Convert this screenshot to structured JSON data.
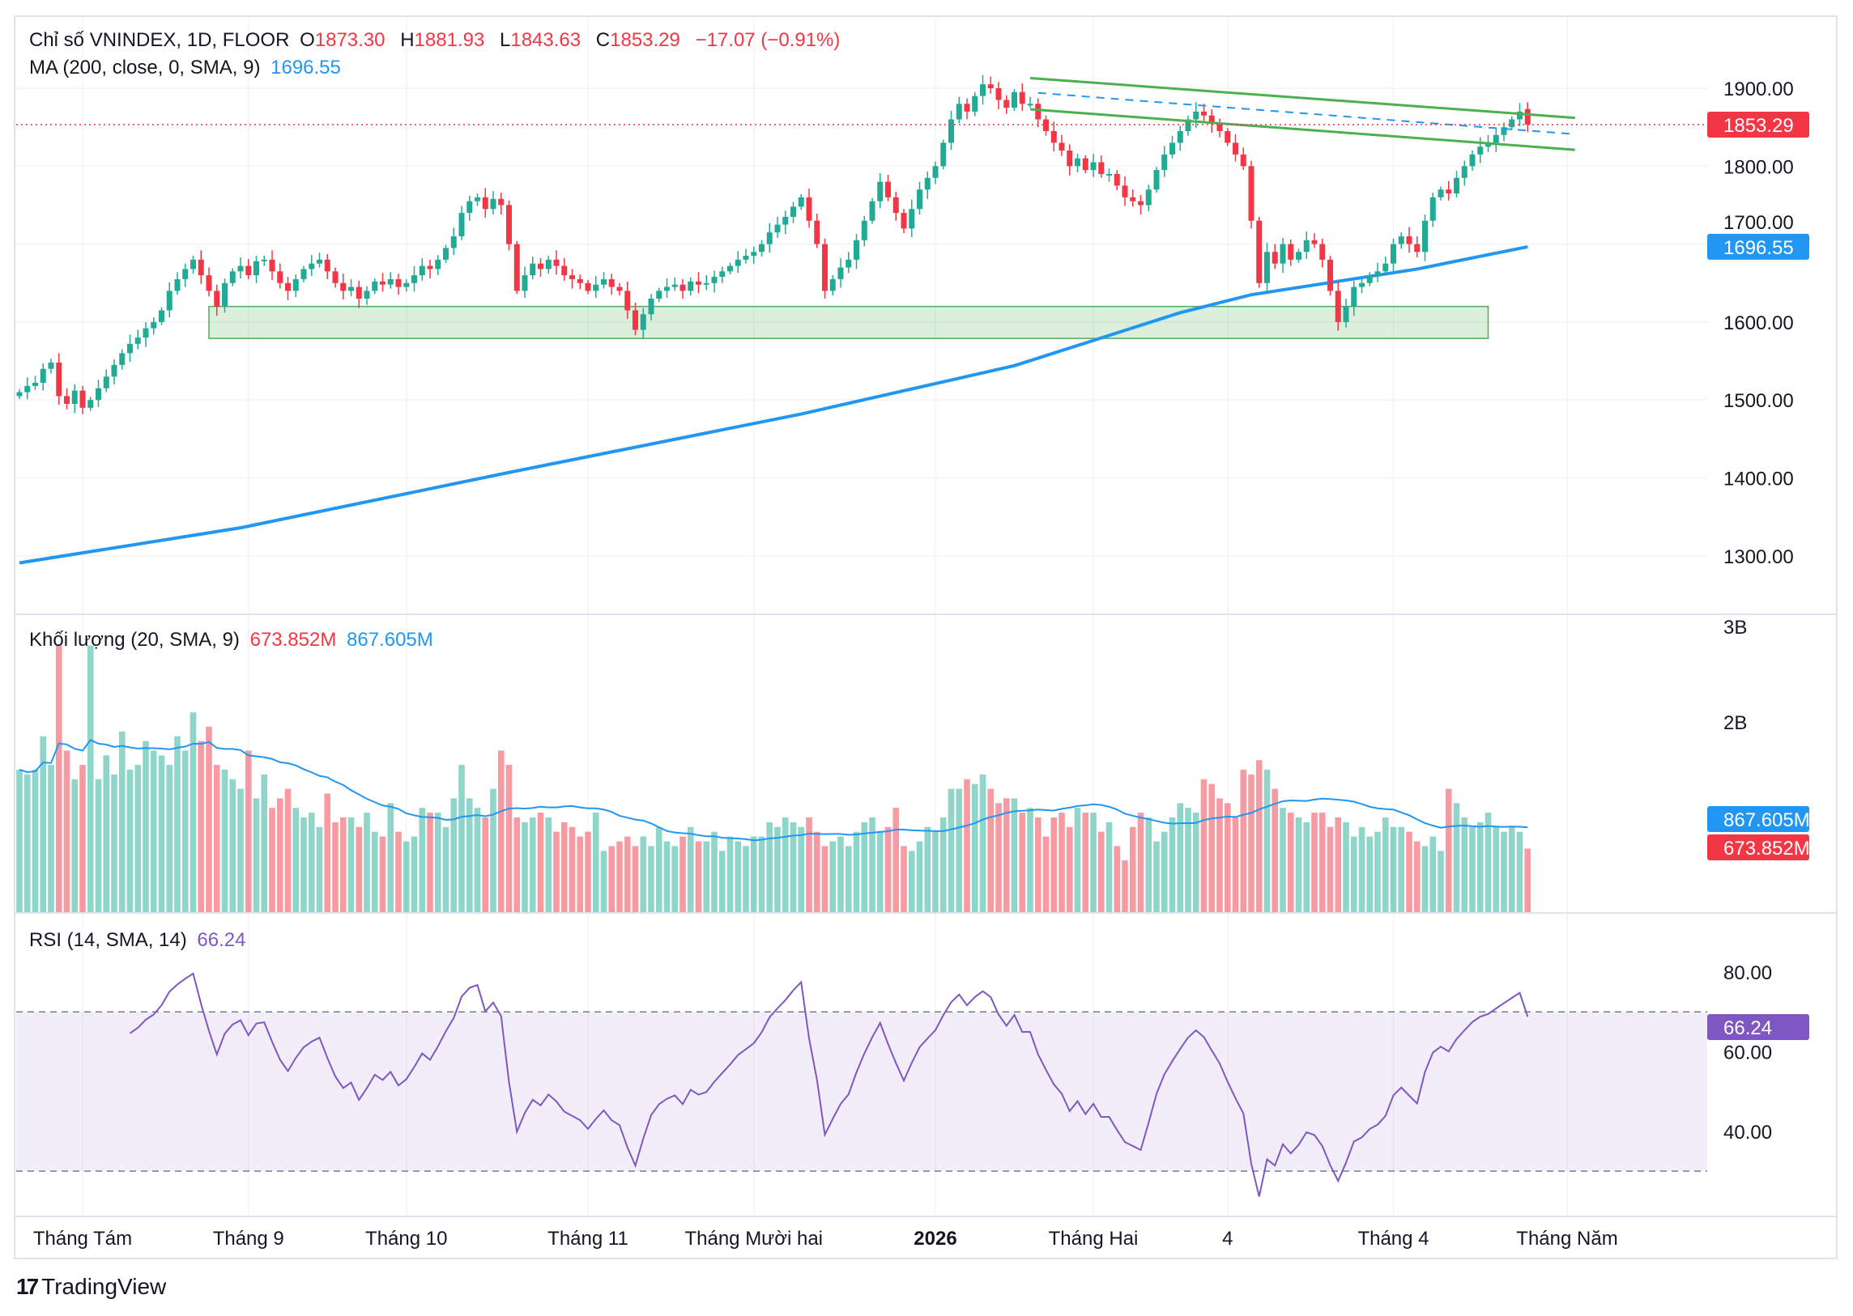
{
  "legend": {
    "title": "Chỉ số VNINDEX, 1D, FLOOR",
    "o_label": "O",
    "o": "1873.30",
    "h_label": "H",
    "h": "1881.93",
    "l_label": "L",
    "l": "1843.63",
    "c_label": "C",
    "c": "1853.29",
    "change": "−17.07 (−0.91%)",
    "ma_label": "MA (200, close, 0, SMA, 9)",
    "ma_value": "1696.55",
    "vol_label": "Khối lượng (20, SMA, 9)",
    "vol_value": "673.852M",
    "vol_ma_value": "867.605M",
    "rsi_label": "RSI (14, SMA, 14)",
    "rsi_value": "66.24"
  },
  "badges": {
    "last_price": "1853.29",
    "ma_price": "1696.55",
    "vol_ma": "867.605M",
    "vol": "673.852M",
    "rsi": "66.24"
  },
  "colors": {
    "up": "#22AB94",
    "down": "#F23645",
    "ma": "#2196F3",
    "rsi": "#7E57C2",
    "zone": "#4CAF50"
  },
  "logo": {
    "text": "TradingView"
  },
  "chart_data": {
    "type": "candlestick",
    "title": "Chỉ số VNINDEX, 1D, FLOOR",
    "price_ticks": [
      "1900.00",
      "1800.00",
      "1700.00",
      "1600.00",
      "1500.00",
      "1400.00",
      "1300.00"
    ],
    "price_tick_values": [
      1900,
      1800,
      1700,
      1600,
      1500,
      1400,
      1300
    ],
    "volume_ticks": [
      "3B",
      "2B"
    ],
    "volume_tick_values": [
      3000,
      2000
    ],
    "rsi_ticks": [
      "80.00",
      "60.00",
      "40.00"
    ],
    "rsi_tick_values": [
      80,
      60,
      40
    ],
    "rsi_bands": [
      70,
      30
    ],
    "x_labels": [
      {
        "label": "Tháng Tám",
        "day": 8
      },
      {
        "label": "Tháng 9",
        "day": 29
      },
      {
        "label": "Tháng 10",
        "day": 49
      },
      {
        "label": "Tháng 11",
        "day": 72
      },
      {
        "label": "Tháng Mười hai",
        "day": 93
      },
      {
        "label": "2026",
        "day": 116,
        "bold": true
      },
      {
        "label": "Tháng Hai",
        "day": 136
      },
      {
        "label": "4",
        "day": 153
      },
      {
        "label": "Tháng 4",
        "day": 174
      },
      {
        "label": "Tháng Năm",
        "day": 196
      }
    ],
    "close": [
      1510,
      1518,
      1522,
      1540,
      1548,
      1505,
      1495,
      1512,
      1490,
      1500,
      1515,
      1530,
      1545,
      1560,
      1572,
      1580,
      1592,
      1600,
      1615,
      1640,
      1655,
      1668,
      1680,
      1660,
      1640,
      1620,
      1650,
      1665,
      1672,
      1660,
      1678,
      1680,
      1665,
      1650,
      1640,
      1655,
      1668,
      1675,
      1680,
      1665,
      1650,
      1640,
      1645,
      1630,
      1640,
      1652,
      1648,
      1655,
      1645,
      1650,
      1660,
      1672,
      1668,
      1680,
      1695,
      1710,
      1740,
      1755,
      1760,
      1745,
      1758,
      1750,
      1700,
      1640,
      1660,
      1675,
      1668,
      1680,
      1672,
      1660,
      1655,
      1650,
      1640,
      1648,
      1655,
      1645,
      1640,
      1615,
      1590,
      1610,
      1630,
      1640,
      1645,
      1648,
      1640,
      1652,
      1648,
      1650,
      1658,
      1665,
      1672,
      1680,
      1685,
      1690,
      1700,
      1715,
      1725,
      1735,
      1748,
      1760,
      1730,
      1700,
      1640,
      1655,
      1670,
      1680,
      1705,
      1730,
      1755,
      1780,
      1760,
      1740,
      1720,
      1745,
      1770,
      1785,
      1800,
      1830,
      1860,
      1880,
      1870,
      1890,
      1905,
      1900,
      1885,
      1875,
      1895,
      1880,
      1880,
      1860,
      1845,
      1830,
      1820,
      1800,
      1810,
      1795,
      1805,
      1790,
      1790,
      1775,
      1760,
      1755,
      1750,
      1770,
      1795,
      1815,
      1830,
      1845,
      1860,
      1870,
      1865,
      1855,
      1845,
      1830,
      1815,
      1800,
      1730,
      1650,
      1690,
      1675,
      1700,
      1680,
      1690,
      1705,
      1700,
      1680,
      1640,
      1600,
      1620,
      1645,
      1650,
      1660,
      1665,
      1675,
      1700,
      1710,
      1700,
      1690,
      1730,
      1760,
      1770,
      1765,
      1785,
      1800,
      1815,
      1825,
      1830,
      1840,
      1850,
      1860,
      1870,
      1853.29
    ],
    "first_open": 1505,
    "last_open": 1873.3,
    "last_high": 1881.93,
    "last_low": 1843.63,
    "volume_millions": [
      1500,
      1450,
      1500,
      1850,
      1550,
      2800,
      1700,
      1400,
      1550,
      2800,
      1400,
      1650,
      1450,
      1900,
      1500,
      1550,
      1800,
      1700,
      1650,
      1550,
      1850,
      1700,
      2100,
      1800,
      1950,
      1550,
      1500,
      1400,
      1300,
      1700,
      1200,
      1450,
      1100,
      1200,
      1300,
      1100,
      1000,
      1050,
      900,
      1250,
      950,
      1000,
      1000,
      900,
      1050,
      850,
      800,
      1150,
      850,
      750,
      800,
      1100,
      1050,
      1050,
      900,
      1200,
      1550,
      1200,
      1100,
      1000,
      1300,
      1700,
      1550,
      1000,
      950,
      1000,
      1050,
      1000,
      850,
      950,
      900,
      800,
      850,
      1050,
      650,
      700,
      750,
      800,
      700,
      800,
      700,
      900,
      750,
      700,
      800,
      900,
      750,
      750,
      850,
      650,
      800,
      750,
      700,
      800,
      800,
      950,
      900,
      1000,
      950,
      900,
      1000,
      850,
      700,
      750,
      800,
      700,
      850,
      950,
      1000,
      850,
      900,
      1100,
      700,
      650,
      750,
      900,
      850,
      1000,
      1300,
      1300,
      1400,
      1350,
      1450,
      1300,
      1150,
      1200,
      1200,
      1050,
      1100,
      1000,
      800,
      1000,
      1050,
      900,
      1100,
      1050,
      1050,
      850,
      950,
      700,
      550,
      900,
      1050,
      1000,
      750,
      850,
      1000,
      1150,
      1100,
      1050,
      1400,
      1350,
      1200,
      1150,
      1000,
      1500,
      1450,
      1600,
      1500,
      1300,
      1100,
      1050,
      1000,
      950,
      1050,
      1050,
      900,
      1000,
      950,
      800,
      900,
      800,
      850,
      1000,
      900,
      900,
      850,
      750,
      700,
      800,
      650,
      1300,
      1150,
      1000,
      900,
      950,
      1050,
      900,
      850,
      900,
      850,
      673.852
    ],
    "ma200": [
      [
        0,
        1291
      ],
      [
        28,
        1336
      ],
      [
        62,
        1407
      ],
      [
        99,
        1482
      ],
      [
        126,
        1544
      ],
      [
        147,
        1612
      ],
      [
        156,
        1635
      ],
      [
        177,
        1668
      ],
      [
        191,
        1696.55
      ]
    ],
    "annotations": {
      "channel_upper": [
        [
          128,
          1913
        ],
        [
          197,
          1862
        ]
      ],
      "channel_lower": [
        [
          128,
          1873
        ],
        [
          197,
          1821
        ]
      ],
      "dashed_mid": [
        [
          129,
          1894
        ],
        [
          197,
          1841
        ]
      ],
      "support_zone": {
        "from_day": 24,
        "to_day": 186,
        "low": 1579,
        "high": 1620
      }
    }
  }
}
